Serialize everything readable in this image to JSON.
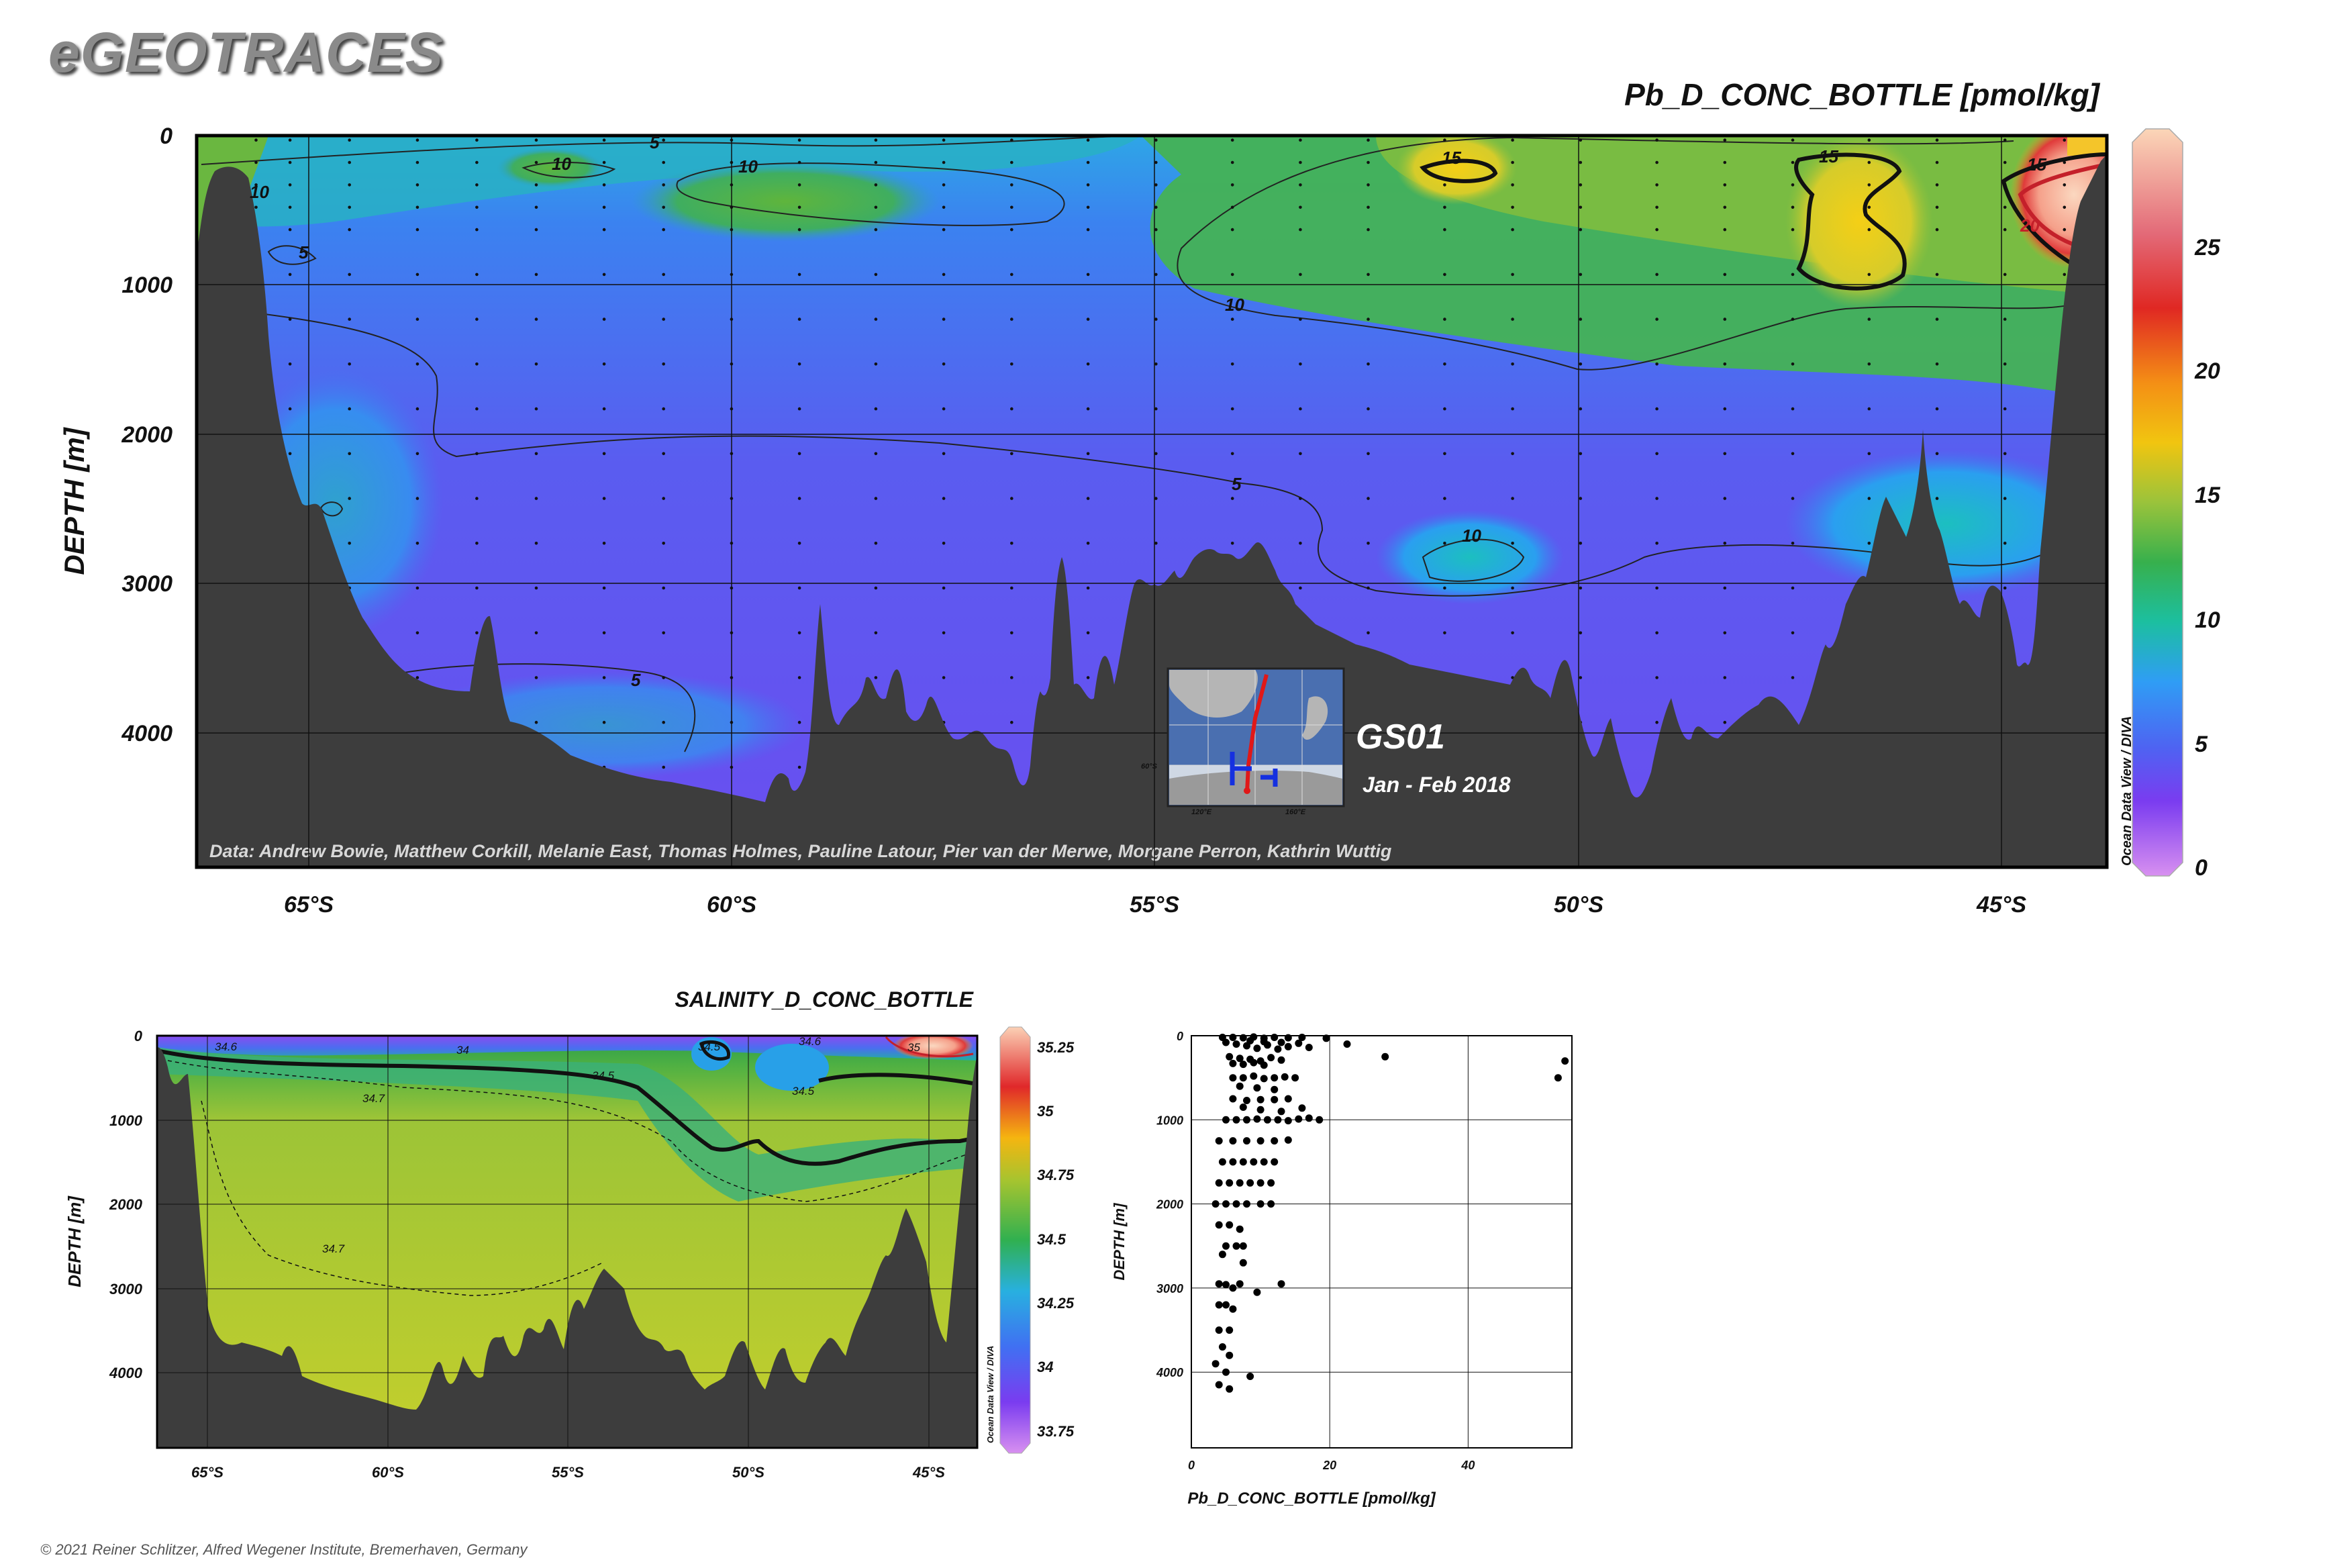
{
  "brand": "eGEOTRACES",
  "footer": "© 2021 Reiner Schlitzer, Alfred Wegener Institute, Bremerhaven, Germany",
  "colors": {
    "land": "#3d3d3d",
    "background": "#ffffff",
    "contour": "#222222"
  },
  "main_section": {
    "title": "Pb_D_CONC_BOTTLE [pmol/kg]",
    "cruise": "GS01",
    "dates": "Jan - Feb 2018",
    "credit": "Data: Andrew Bowie, Matthew Corkill, Melanie East, Thomas Holmes, Pauline Latour, Pier van der Merwe, Morgane Perron, Kathrin Wuttig",
    "odv_label": "Ocean Data View / DIVA",
    "ylabel": "DEPTH [m]",
    "yticks": [
      "0",
      "1000",
      "2000",
      "3000",
      "4000"
    ],
    "xticks": [
      "65°S",
      "60°S",
      "55°S",
      "50°S",
      "45°S"
    ],
    "colorbar_ticks": [
      "25",
      "20",
      "15",
      "10",
      "5",
      "0"
    ],
    "contour_labels": [
      "5",
      "10",
      "10",
      "10",
      "5",
      "15",
      "15",
      "15",
      "20",
      "10",
      "5",
      "10",
      "5"
    ],
    "inset_labels": [
      "120°E",
      "160°E",
      "60°S"
    ]
  },
  "salinity_section": {
    "title": "SALINITY_D_CONC_BOTTLE",
    "ylabel": "DEPTH [m]",
    "yticks": [
      "0",
      "1000",
      "2000",
      "3000",
      "4000"
    ],
    "xticks": [
      "65°S",
      "60°S",
      "55°S",
      "50°S",
      "45°S"
    ],
    "colorbar_ticks": [
      "35.25",
      "35",
      "34.75",
      "34.5",
      "34.25",
      "34",
      "33.75"
    ],
    "odv_label": "Ocean Data View / DIVA",
    "contour_labels": [
      "34.6",
      "34",
      "34.5",
      "34.5",
      "34.6",
      "35",
      "34.5",
      "34.7",
      "34.7"
    ]
  },
  "chart_data": [
    {
      "type": "heatmap",
      "title": "Pb_D_CONC_BOTTLE [pmol/kg]",
      "xlabel": "",
      "ylabel": "DEPTH [m]",
      "xlim": [
        66.3,
        43.8
      ],
      "ylim": [
        4900,
        0
      ],
      "color_range": [
        0,
        29
      ],
      "colorbar_ticks": [
        0,
        5,
        10,
        15,
        20,
        25
      ],
      "contour_levels": [
        5,
        10,
        15,
        20
      ],
      "station_lats": [
        65.6,
        65.2,
        64.5,
        63.7,
        63.0,
        62.3,
        61.5,
        60.8,
        60.0,
        59.2,
        58.3,
        57.5,
        56.7,
        55.8,
        55.0,
        54.1,
        53.3,
        52.5,
        51.6,
        50.8,
        50.0,
        49.1,
        48.3,
        47.5,
        46.6,
        45.8,
        45.0,
        44.3
      ]
    },
    {
      "type": "heatmap",
      "title": "SALINITY_D_CONC_BOTTLE",
      "ylabel": "DEPTH [m]",
      "xlim": [
        66.3,
        43.8
      ],
      "ylim": [
        4900,
        0
      ],
      "color_range": [
        33.65,
        35.35
      ],
      "colorbar_ticks": [
        33.75,
        34,
        34.25,
        34.5,
        34.75,
        35,
        35.25
      ],
      "contour_levels": [
        34,
        34.5,
        34.6,
        34.7,
        35
      ]
    },
    {
      "type": "scatter",
      "title": "",
      "xlabel": "Pb_D_CONC_BOTTLE [pmol/kg]",
      "ylabel": "DEPTH [m]",
      "xlim": [
        0,
        55
      ],
      "ylim": [
        4900,
        0
      ],
      "xticks": [
        0,
        20,
        40
      ],
      "yticks": [
        0,
        1000,
        2000,
        3000,
        4000
      ],
      "points": [
        [
          4.5,
          20
        ],
        [
          6,
          20
        ],
        [
          7.5,
          25
        ],
        [
          9,
          15
        ],
        [
          10.5,
          30
        ],
        [
          12,
          20
        ],
        [
          14,
          25
        ],
        [
          16,
          20
        ],
        [
          19.5,
          30
        ],
        [
          22.5,
          100
        ],
        [
          28,
          250
        ],
        [
          54,
          300
        ],
        [
          53,
          500
        ],
        [
          5,
          80
        ],
        [
          6.5,
          100
        ],
        [
          8,
          120
        ],
        [
          9.5,
          150
        ],
        [
          11,
          110
        ],
        [
          12.5,
          160
        ],
        [
          14,
          130
        ],
        [
          15.5,
          90
        ],
        [
          17,
          140
        ],
        [
          8.5,
          60
        ],
        [
          10.5,
          70
        ],
        [
          13,
          80
        ],
        [
          5.5,
          250
        ],
        [
          7,
          270
        ],
        [
          8.5,
          280
        ],
        [
          10,
          300
        ],
        [
          11.5,
          260
        ],
        [
          13,
          290
        ],
        [
          6,
          330
        ],
        [
          7.5,
          340
        ],
        [
          9,
          320
        ],
        [
          10.5,
          350
        ],
        [
          6,
          500
        ],
        [
          7.5,
          500
        ],
        [
          9,
          480
        ],
        [
          10.5,
          510
        ],
        [
          12,
          500
        ],
        [
          13.5,
          490
        ],
        [
          15,
          500
        ],
        [
          7,
          600
        ],
        [
          9.5,
          620
        ],
        [
          12,
          640
        ],
        [
          6,
          750
        ],
        [
          8,
          770
        ],
        [
          10,
          760
        ],
        [
          12,
          760
        ],
        [
          14,
          750
        ],
        [
          7.5,
          850
        ],
        [
          10,
          880
        ],
        [
          13,
          900
        ],
        [
          16,
          860
        ],
        [
          5,
          1000
        ],
        [
          6.5,
          1000
        ],
        [
          8,
          1000
        ],
        [
          9.5,
          990
        ],
        [
          11,
          1000
        ],
        [
          12.5,
          1000
        ],
        [
          14,
          1010
        ],
        [
          15.5,
          990
        ],
        [
          17,
          980
        ],
        [
          18.5,
          1000
        ],
        [
          4,
          1250
        ],
        [
          6,
          1250
        ],
        [
          8,
          1250
        ],
        [
          10,
          1250
        ],
        [
          12,
          1250
        ],
        [
          14,
          1240
        ],
        [
          4.5,
          1500
        ],
        [
          6,
          1500
        ],
        [
          7.5,
          1500
        ],
        [
          9,
          1500
        ],
        [
          10.5,
          1500
        ],
        [
          12,
          1500
        ],
        [
          4,
          1750
        ],
        [
          5.5,
          1750
        ],
        [
          7,
          1750
        ],
        [
          8.5,
          1750
        ],
        [
          10,
          1750
        ],
        [
          11.5,
          1750
        ],
        [
          3.5,
          2000
        ],
        [
          5,
          2000
        ],
        [
          6.5,
          2000
        ],
        [
          8,
          2000
        ],
        [
          10,
          2000
        ],
        [
          11.5,
          2000
        ],
        [
          4,
          2250
        ],
        [
          5.5,
          2250
        ],
        [
          7,
          2300
        ],
        [
          5,
          2500
        ],
        [
          6.5,
          2500
        ],
        [
          7.5,
          2500
        ],
        [
          7.5,
          2700
        ],
        [
          4.5,
          2600
        ],
        [
          4,
          2950
        ],
        [
          5,
          2960
        ],
        [
          6,
          3000
        ],
        [
          7,
          2950
        ],
        [
          9.5,
          3050
        ],
        [
          13,
          2950
        ],
        [
          4,
          3200
        ],
        [
          5,
          3200
        ],
        [
          6,
          3250
        ],
        [
          4,
          3500
        ],
        [
          5.5,
          3500
        ],
        [
          4.5,
          3700
        ],
        [
          5.5,
          3800
        ],
        [
          3.5,
          3900
        ],
        [
          5,
          4000
        ],
        [
          8.5,
          4050
        ],
        [
          4,
          4150
        ],
        [
          5.5,
          4200
        ]
      ]
    }
  ]
}
